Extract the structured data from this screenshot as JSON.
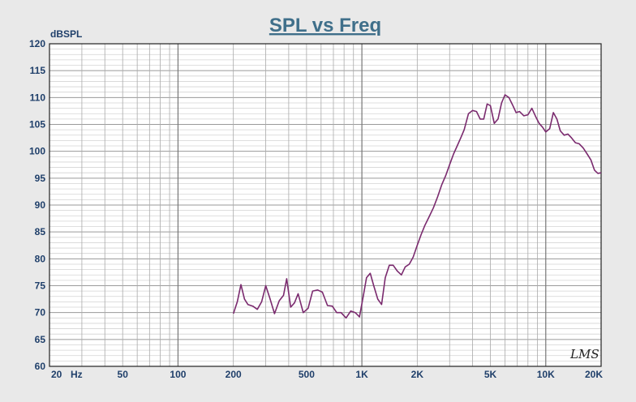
{
  "chart_data": {
    "type": "line",
    "title": "SPL vs Freq",
    "ylabel": "dBSPL",
    "xlabel": "",
    "x_scale": "log",
    "xlim": [
      20,
      20000
    ],
    "ylim": [
      60,
      120
    ],
    "y_ticks": [
      {
        "value": 60,
        "label": "60"
      },
      {
        "value": 65,
        "label": "65"
      },
      {
        "value": 70,
        "label": "70"
      },
      {
        "value": 75,
        "label": "75"
      },
      {
        "value": 80,
        "label": "80"
      },
      {
        "value": 85,
        "label": "85"
      },
      {
        "value": 90,
        "label": "90"
      },
      {
        "value": 95,
        "label": "95"
      },
      {
        "value": 100,
        "label": "100"
      },
      {
        "value": 105,
        "label": "105"
      },
      {
        "value": 110,
        "label": "110"
      },
      {
        "value": 115,
        "label": "115"
      },
      {
        "value": 120,
        "label": "120"
      }
    ],
    "x_ticks": [
      {
        "value": 20,
        "label": "20"
      },
      {
        "value": 50,
        "label": "50"
      },
      {
        "value": 100,
        "label": "100"
      },
      {
        "value": 200,
        "label": "200"
      },
      {
        "value": 500,
        "label": "500"
      },
      {
        "value": 1000,
        "label": "1K"
      },
      {
        "value": 2000,
        "label": "2K"
      },
      {
        "value": 5000,
        "label": "5K"
      },
      {
        "value": 10000,
        "label": "10K"
      },
      {
        "value": 20000,
        "label": "20K"
      }
    ],
    "x_unit": "Hz",
    "grid": true,
    "line_color": "#7a2a6e",
    "series": [
      {
        "x": [
          200,
          210,
          220,
          230,
          240,
          255,
          270,
          285,
          300,
          315,
          335,
          355,
          375,
          390,
          410,
          430,
          450,
          480,
          510,
          540,
          575,
          610,
          650,
          690,
          730,
          770,
          820,
          870,
          920,
          970,
          1020,
          1060,
          1110,
          1160,
          1220,
          1280,
          1340,
          1410,
          1480,
          1560,
          1640,
          1720,
          1810,
          1900,
          2000,
          2100,
          2200,
          2320,
          2450,
          2580,
          2720,
          2860,
          3000,
          3150,
          3300,
          3450,
          3600,
          3800,
          4000,
          4200,
          4400,
          4600,
          4800,
          5000,
          5250,
          5500,
          5750,
          6000,
          6300,
          6600,
          6900,
          7200,
          7600,
          8000,
          8400,
          8800,
          9200,
          9600,
          10000,
          10500,
          11000,
          11500,
          12000,
          12600,
          13200,
          13800,
          14500,
          15200,
          16000,
          16800,
          17600,
          18400,
          19200,
          20000
        ],
        "y": [
          69.8,
          72,
          75.2,
          72.5,
          71.5,
          71.2,
          70.6,
          72,
          75,
          72.8,
          69.8,
          72.2,
          73.2,
          76.3,
          71,
          71.8,
          73.5,
          70,
          70.8,
          74,
          74.2,
          73.8,
          71.3,
          71.2,
          70,
          70,
          69,
          70.3,
          70,
          69.2,
          73.2,
          76.5,
          77.3,
          75,
          72.5,
          71.5,
          76.5,
          78.8,
          78.8,
          77.7,
          77,
          78.5,
          79,
          80.3,
          82.5,
          84.5,
          86.2,
          87.8,
          89.5,
          91.5,
          93.8,
          95.5,
          97.5,
          99.5,
          101,
          102.5,
          104,
          107,
          107.6,
          107.4,
          106,
          106,
          108.8,
          108.5,
          105.2,
          106,
          109,
          110.5,
          110,
          108.6,
          107.2,
          107.4,
          106.6,
          106.8,
          108,
          106.5,
          105.2,
          104.5,
          103.6,
          104.2,
          107.2,
          106,
          103.8,
          103,
          103.2,
          102.5,
          101.6,
          101.4,
          100.6,
          99.5,
          98.4,
          96.5,
          95.9,
          96
        ]
      }
    ]
  },
  "logo_text": "LMS"
}
